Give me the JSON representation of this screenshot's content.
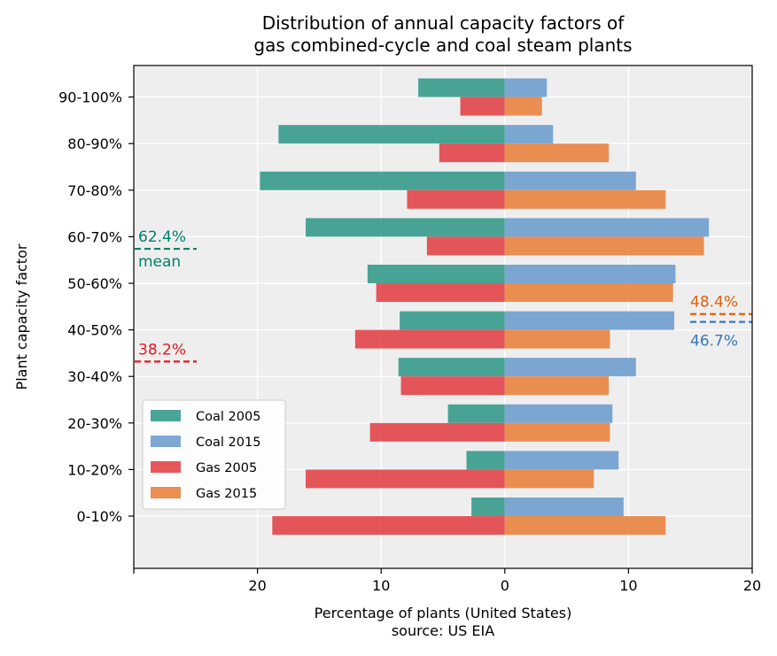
{
  "chart_data": {
    "type": "bar",
    "orientation": "horizontal",
    "title": "Distribution of annual capacity factors of\ngas combined-cycle and coal steam plants",
    "xlabel": "Percentage of plants (United States)\nsource: US EIA",
    "ylabel": "Plant capacity factor",
    "xlim": [
      -30,
      20
    ],
    "xticks": [
      -20,
      -10,
      0,
      10,
      20
    ],
    "xtick_labels": [
      "20",
      "10",
      "0",
      "10",
      "20"
    ],
    "categories": [
      "0-10%",
      "10-20%",
      "20-30%",
      "30-40%",
      "40-50%",
      "50-60%",
      "60-70%",
      "70-80%",
      "80-90%",
      "90-100%"
    ],
    "grid": true,
    "legend_position": "lower-left",
    "series": [
      {
        "name": "Coal 2005",
        "color": "#2a9585",
        "side": "left",
        "slot": "upper",
        "values": [
          2.7,
          3.1,
          4.6,
          8.6,
          8.5,
          11.1,
          16.1,
          19.8,
          18.3,
          7.0
        ]
      },
      {
        "name": "Coal 2015",
        "color": "#6699cc",
        "side": "right",
        "slot": "upper",
        "values": [
          9.6,
          9.2,
          8.7,
          10.6,
          13.7,
          13.8,
          16.5,
          10.6,
          3.9,
          3.4
        ]
      },
      {
        "name": "Gas 2005",
        "color": "#e0393e",
        "side": "left",
        "slot": "lower",
        "values": [
          18.8,
          16.1,
          10.9,
          8.4,
          12.1,
          10.4,
          6.3,
          7.9,
          5.3,
          3.6
        ]
      },
      {
        "name": "Gas 2015",
        "color": "#e97b34",
        "side": "right",
        "slot": "lower",
        "values": [
          13.0,
          7.2,
          8.5,
          8.4,
          8.5,
          13.6,
          16.1,
          13.0,
          8.4,
          3.0
        ]
      }
    ],
    "annotations": [
      {
        "label": "62.4%",
        "sublabel": "mean",
        "series": "Coal 2005",
        "value": 62.4,
        "color": "#00806e",
        "side": "left"
      },
      {
        "label": "38.2%",
        "series": "Gas 2005",
        "value": 38.2,
        "color": "#e0191e",
        "side": "left"
      },
      {
        "label": "48.4%",
        "series": "Gas 2015",
        "value": 48.4,
        "color": "#e0600a",
        "side": "right"
      },
      {
        "label": "46.7%",
        "series": "Coal 2015",
        "value": 46.7,
        "color": "#3a78b5",
        "side": "right"
      }
    ]
  }
}
